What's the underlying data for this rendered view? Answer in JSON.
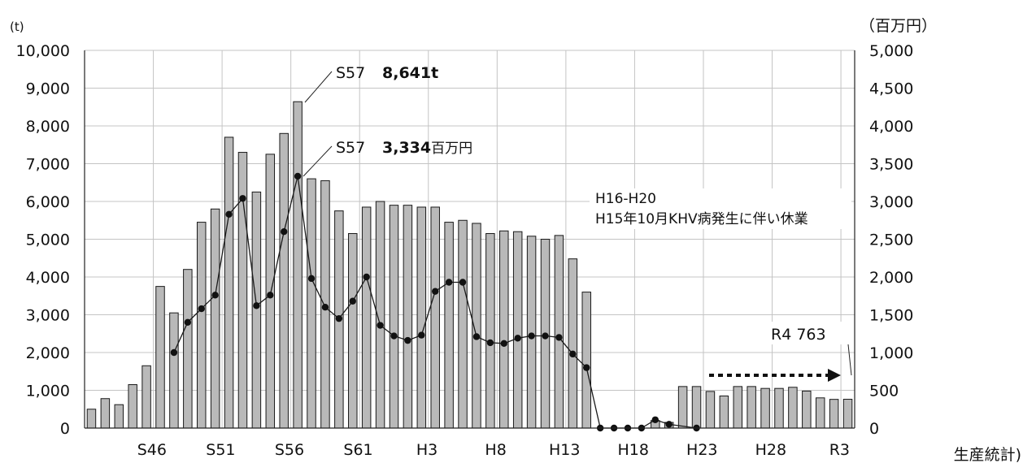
{
  "chart_data": {
    "type": "bar",
    "left_unit": "(t)",
    "right_unit": "（百万円）",
    "left_ylim": [
      0,
      10000
    ],
    "right_ylim": [
      0,
      5000
    ],
    "left_ticks": [
      "0",
      "1,000",
      "2,000",
      "3,000",
      "4,000",
      "5,000",
      "6,000",
      "7,000",
      "8,000",
      "9,000",
      "10,000"
    ],
    "right_ticks": [
      "0",
      "500",
      "1,000",
      "1,500",
      "2,000",
      "2,500",
      "3,000",
      "3,500",
      "4,000",
      "4,500",
      "5,000"
    ],
    "x_tick_labels": [
      {
        "label": "S46",
        "index": 4
      },
      {
        "label": "S51",
        "index": 9
      },
      {
        "label": "S56",
        "index": 14
      },
      {
        "label": "S61",
        "index": 19
      },
      {
        "label": "H3",
        "index": 24
      },
      {
        "label": "H8",
        "index": 29
      },
      {
        "label": "H13",
        "index": 34
      },
      {
        "label": "H18",
        "index": 39
      },
      {
        "label": "H23",
        "index": 44
      },
      {
        "label": "H28",
        "index": 49
      },
      {
        "label": "R3",
        "index": 54
      }
    ],
    "grid": true,
    "series": [
      {
        "type": "bar",
        "axis": "left",
        "values": [
          500,
          780,
          620,
          1150,
          1650,
          3750,
          3050,
          4200,
          5450,
          5800,
          7700,
          7300,
          6250,
          7250,
          7800,
          8641,
          6600,
          6550,
          5750,
          5150,
          5850,
          6000,
          5900,
          5900,
          5850,
          5850,
          5450,
          5500,
          5420,
          5150,
          5220,
          5200,
          5080,
          5000,
          5100,
          4480,
          3600,
          0,
          0,
          0,
          0,
          200,
          150,
          1100,
          1100,
          970,
          850,
          1100,
          1100,
          1050,
          1050,
          1080,
          980,
          800,
          760,
          763
        ]
      },
      {
        "type": "line",
        "axis": "right",
        "values": [
          null,
          null,
          null,
          null,
          null,
          null,
          1000,
          1400,
          1580,
          1760,
          2830,
          3040,
          1620,
          1760,
          2600,
          3334,
          1980,
          1600,
          1450,
          1680,
          2000,
          1360,
          1220,
          1160,
          1230,
          1810,
          1930,
          1930,
          1210,
          1130,
          1120,
          1190,
          1220,
          1220,
          1200,
          980,
          800,
          0,
          0,
          0,
          0,
          110,
          50,
          null,
          0,
          null,
          null,
          null,
          null,
          null,
          null,
          null,
          null,
          null,
          null,
          null
        ]
      }
    ],
    "annotations": [
      {
        "prefix": "S57",
        "value": "8,641",
        "unit": "t"
      },
      {
        "prefix": "S57",
        "value": "3,334",
        "unit": "百万円"
      },
      {
        "line1": "H16-H20",
        "line2": "H15年10月KHV病発生に伴い休業"
      },
      {
        "label": "R4 763"
      }
    ],
    "source_text": "生産統計)"
  }
}
